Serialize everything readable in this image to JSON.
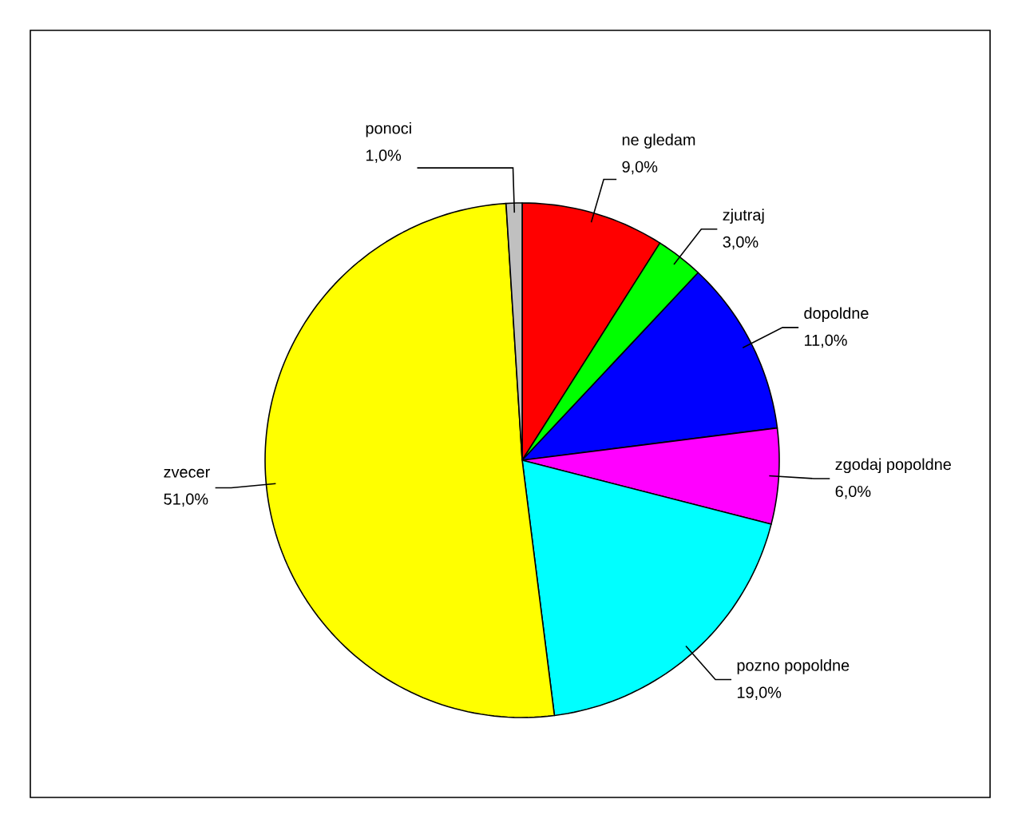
{
  "chart_data": {
    "type": "pie",
    "categories": [
      "ne gledam",
      "zjutraj",
      "dopoldne",
      "zgodaj popoldne",
      "pozno popoldne",
      "zvecer",
      "ponoci"
    ],
    "values": [
      9,
      3,
      11,
      6,
      19,
      51,
      1
    ],
    "value_labels": [
      "9,0%",
      "3,0%",
      "11,0%",
      "6,0%",
      "19,0%",
      "51,0%",
      "1,0%"
    ],
    "colors": [
      "#ff0000",
      "#00ff00",
      "#0000ff",
      "#ff00ff",
      "#00ffff",
      "#ffff00",
      "#c0c0c0"
    ]
  }
}
